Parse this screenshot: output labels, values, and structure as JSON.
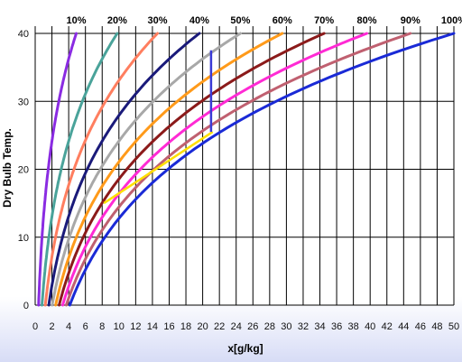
{
  "chart_data": {
    "type": "line",
    "xlabel": "x[g/kg]",
    "ylabel": "Dry Bulb Temp.",
    "xlim": [
      0,
      50
    ],
    "ylim": [
      0,
      40
    ],
    "x_ticks": [
      0,
      2,
      4,
      6,
      8,
      10,
      12,
      14,
      16,
      18,
      20,
      22,
      24,
      26,
      28,
      30,
      32,
      34,
      36,
      38,
      40,
      42,
      44,
      46,
      48,
      50
    ],
    "y_ticks": [
      0,
      10,
      20,
      30,
      40
    ],
    "grid": true,
    "series": [
      {
        "name": "10%",
        "color": "#8a2be2",
        "x_at_40C": 4.9
      },
      {
        "name": "20%",
        "color": "#4aa39a",
        "x_at_40C": 9.8
      },
      {
        "name": "30%",
        "color": "#ff7e5f",
        "x_at_40C": 14.6
      },
      {
        "name": "40%",
        "color": "#1a1a7a",
        "x_at_40C": 19.6
      },
      {
        "name": "50%",
        "color": "#a8a8a8",
        "x_at_40C": 24.5
      },
      {
        "name": "60%",
        "color": "#ff9a1a",
        "x_at_40C": 29.5
      },
      {
        "name": "70%",
        "color": "#8b1a1a",
        "x_at_40C": 34.5
      },
      {
        "name": "80%",
        "color": "#ff2ad4",
        "x_at_40C": 39.6
      },
      {
        "name": "90%",
        "color": "#c06070",
        "x_at_40C": 44.8
      },
      {
        "name": "100%",
        "color": "#1a2ad6",
        "x_at_40C": 50.0
      }
    ],
    "annotations": [
      {
        "type": "line",
        "color": "#ffe000",
        "points": [
          [
            8.2,
            15.0
          ],
          [
            21.2,
            25.5
          ]
        ]
      },
      {
        "type": "line",
        "color": "#3b3bd6",
        "points": [
          [
            21.0,
            37.5
          ],
          [
            21.0,
            25.5
          ]
        ]
      }
    ]
  }
}
